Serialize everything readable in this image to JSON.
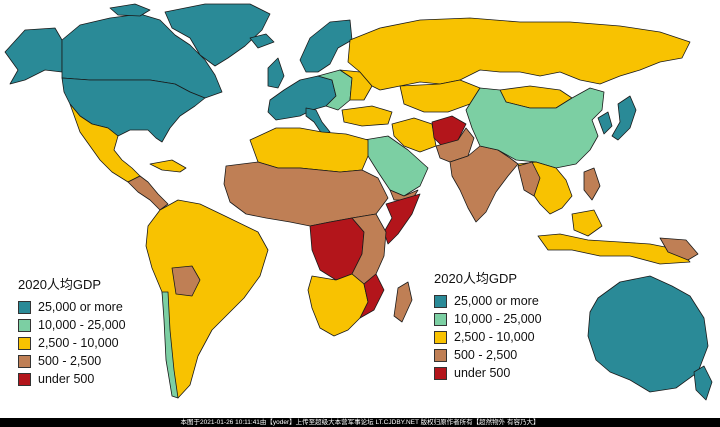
{
  "colors": {
    "c25000": "#2a8a97",
    "c10000": "#7ccfa3",
    "c2500": "#f8c201",
    "c500": "#bf7f55",
    "cunder": "#b3151b",
    "ocean": "#ffffff",
    "border": "#1a1a1a"
  },
  "legend_left": {
    "title": "2020人均GDP",
    "items": [
      {
        "label": "25,000 or more",
        "color": "#2a8a97"
      },
      {
        "label": "10,000 - 25,000",
        "color": "#7ccfa3"
      },
      {
        "label": "2,500 - 10,000",
        "color": "#f8c201"
      },
      {
        "label": "500 - 2,500",
        "color": "#bf7f55"
      },
      {
        "label": "under 500",
        "color": "#b3151b"
      }
    ]
  },
  "legend_right": {
    "title": "2020人均GDP",
    "items": [
      {
        "label": "25,000 or more",
        "color": "#2a8a97"
      },
      {
        "label": "10,000 - 25,000",
        "color": "#7ccfa3"
      },
      {
        "label": "2,500 - 10,000",
        "color": "#f8c201"
      },
      {
        "label": "500 - 2,500",
        "color": "#bf7f55"
      },
      {
        "label": "under 500",
        "color": "#b3151b"
      }
    ]
  },
  "footer": {
    "text": "本图于2021-01-26 10:11:41由【yoder】上传至超级大本营军事论坛 LT.CJDBY.NET 版权归原作者所有【超然物外 有容乃大】"
  }
}
